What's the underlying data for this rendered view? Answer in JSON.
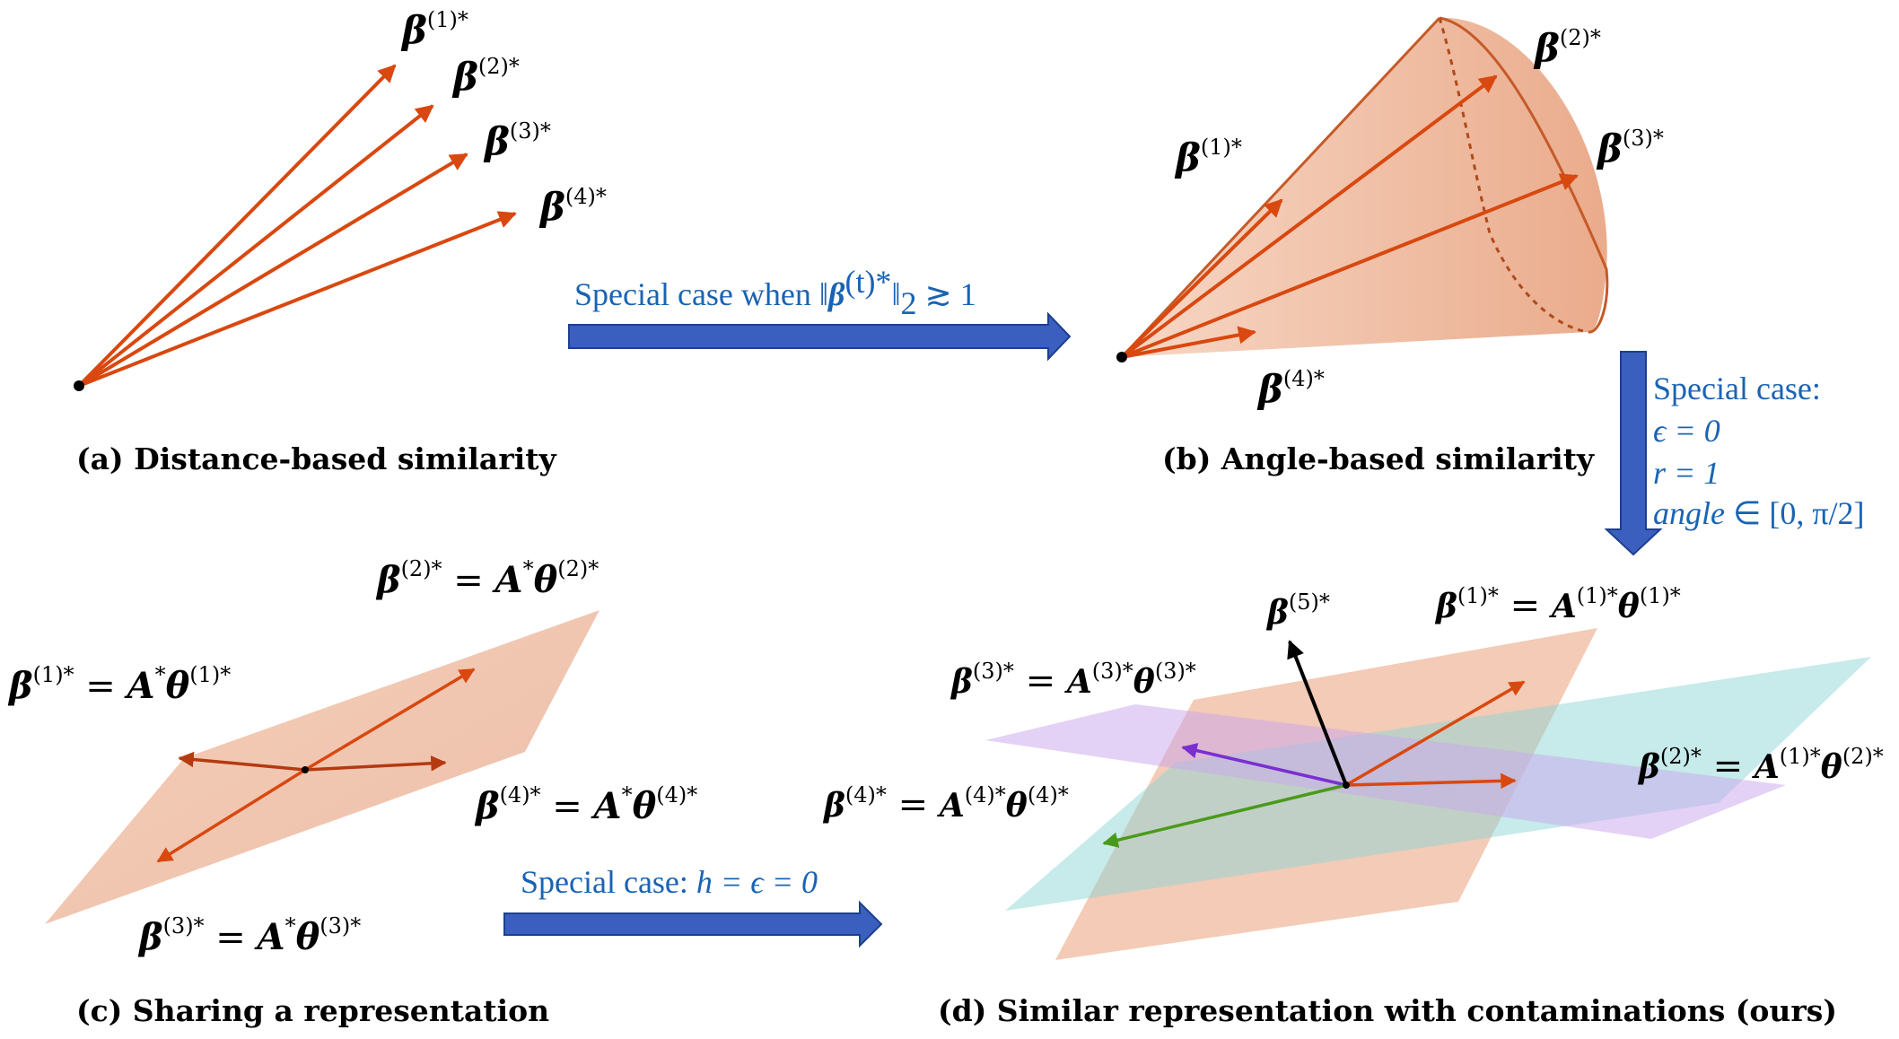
{
  "panels": {
    "a": {
      "caption": "(a) Distance-based similarity",
      "vector_labels": [
        {
          "base": "β",
          "sup": "(1)*"
        },
        {
          "base": "β",
          "sup": "(2)*"
        },
        {
          "base": "β",
          "sup": "(3)*"
        },
        {
          "base": "β",
          "sup": "(4)*"
        }
      ]
    },
    "b": {
      "caption": "(b) Angle-based similarity",
      "vector_labels": [
        {
          "base": "β",
          "sup": "(1)*"
        },
        {
          "base": "β",
          "sup": "(2)*"
        },
        {
          "base": "β",
          "sup": "(3)*"
        },
        {
          "base": "β",
          "sup": "(4)*"
        }
      ]
    },
    "c": {
      "caption": "(c) Sharing a representation",
      "equations": [
        {
          "lhs": "β",
          "lsup": "(2)*",
          "mid": " = ",
          "A": "A",
          "asup": "*",
          "theta": "θ",
          "tsup": "(2)*"
        },
        {
          "lhs": "β",
          "lsup": "(1)*",
          "mid": " = ",
          "A": "A",
          "asup": "*",
          "theta": "θ",
          "tsup": "(1)*"
        },
        {
          "lhs": "β",
          "lsup": "(4)*",
          "mid": " = ",
          "A": "A",
          "asup": "*",
          "theta": "θ",
          "tsup": "(4)*"
        },
        {
          "lhs": "β",
          "lsup": "(3)*",
          "mid": " = ",
          "A": "A",
          "asup": "*",
          "theta": "θ",
          "tsup": "(3)*"
        }
      ]
    },
    "d": {
      "caption": "(d) Similar representation with contaminations (ours)",
      "label_5": {
        "base": "β",
        "sup": "(5)*"
      },
      "equations": [
        {
          "lhs": "β",
          "lsup": "(1)*",
          "mid": " = ",
          "A": "A",
          "asup": "(1)*",
          "theta": "θ",
          "tsup": "(1)*"
        },
        {
          "lhs": "β",
          "lsup": "(3)*",
          "mid": " = ",
          "A": "A",
          "asup": "(3)*",
          "theta": "θ",
          "tsup": "(3)*"
        },
        {
          "lhs": "β",
          "lsup": "(2)*",
          "mid": " = ",
          "A": "A",
          "asup": "(1)*",
          "theta": "θ",
          "tsup": "(2)*"
        },
        {
          "lhs": "β",
          "lsup": "(4)*",
          "mid": " = ",
          "A": "A",
          "asup": "(4)*",
          "theta": "θ",
          "tsup": "(4)*"
        }
      ]
    }
  },
  "arrows": {
    "a_to_b": {
      "text_pre": "Special case when ",
      "norm_base": "β",
      "norm_sup": "(t)*",
      "norm_sub": "2",
      "text_post": " ≳ 1"
    },
    "b_to_d": {
      "line1": "Special case:",
      "line2": "ϵ = 0",
      "line3": "r = 1",
      "line4_it": "angle",
      "line4_rest": " ∈ [0, π/2]"
    },
    "c_to_d": {
      "text": "Special case: ",
      "math": "h = ϵ = 0"
    }
  },
  "colors": {
    "vector": "#d9480f",
    "cone": "#e9a07a",
    "plane": "#e9a07a",
    "plane_cyan": "#8fd6d6",
    "plane_purple": "#c9a6ee",
    "arrow_blue": "#3a5fbf",
    "text_blue": "#1a63b3",
    "purple_vec": "#7a2fd0",
    "green_vec": "#4a9a1a"
  }
}
